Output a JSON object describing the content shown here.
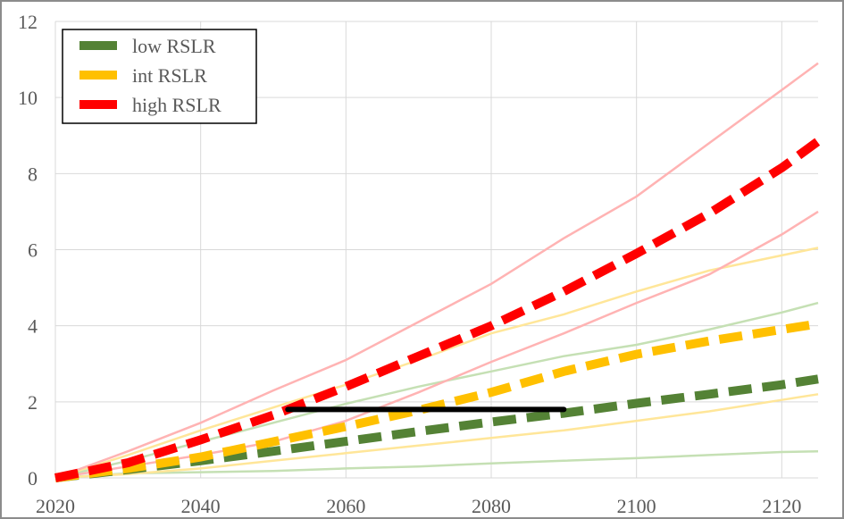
{
  "chart_data": {
    "type": "line",
    "title": "",
    "xlabel": "",
    "ylabel": "",
    "xlim": [
      2020,
      2125
    ],
    "ylim": [
      0,
      12
    ],
    "xticks": [
      2020,
      2040,
      2060,
      2080,
      2100,
      2120
    ],
    "yticks": [
      0,
      2,
      4,
      6,
      8,
      10,
      12
    ],
    "grid": true,
    "legend_position": "top-left",
    "colors": {
      "low": "#548235",
      "int": "#ffc000",
      "high": "#ff0000",
      "low_band": "#c5e0b4",
      "int_band": "#ffe699",
      "high_band": "#ffb3b3"
    },
    "series": [
      {
        "name": "low RSLR",
        "style": "dashed",
        "color": "#548235",
        "x": [
          2020,
          2030,
          2040,
          2050,
          2060,
          2070,
          2080,
          2090,
          2100,
          2110,
          2120,
          2125
        ],
        "values": [
          0,
          0.22,
          0.45,
          0.7,
          0.96,
          1.22,
          1.47,
          1.7,
          1.96,
          2.2,
          2.45,
          2.6
        ]
      },
      {
        "name": "int RSLR",
        "style": "dashed",
        "color": "#ffc000",
        "x": [
          2020,
          2030,
          2040,
          2050,
          2060,
          2070,
          2080,
          2090,
          2100,
          2110,
          2120,
          2125
        ],
        "values": [
          0,
          0.25,
          0.55,
          0.95,
          1.35,
          1.78,
          2.25,
          2.8,
          3.25,
          3.6,
          3.9,
          4.05
        ]
      },
      {
        "name": "high RSLR",
        "style": "dashed",
        "color": "#ff0000",
        "x": [
          2020,
          2030,
          2040,
          2050,
          2060,
          2070,
          2080,
          2090,
          2100,
          2110,
          2120,
          2125
        ],
        "values": [
          0,
          0.4,
          1.0,
          1.65,
          2.4,
          3.2,
          4.0,
          4.9,
          5.9,
          6.95,
          8.15,
          8.85
        ]
      }
    ],
    "bands": [
      {
        "color": "#c5e0b4",
        "x": [
          2020,
          2030,
          2040,
          2050,
          2060,
          2070,
          2080,
          2090,
          2100,
          2110,
          2120,
          2125
        ],
        "values": [
          0,
          0.12,
          0.15,
          0.18,
          0.25,
          0.3,
          0.38,
          0.45,
          0.52,
          0.6,
          0.68,
          0.7
        ]
      },
      {
        "color": "#c5e0b4",
        "x": [
          2020,
          2030,
          2040,
          2050,
          2060,
          2070,
          2080,
          2090,
          2100,
          2110,
          2120,
          2125
        ],
        "values": [
          0,
          0.45,
          0.95,
          1.45,
          1.95,
          2.4,
          2.8,
          3.2,
          3.5,
          3.9,
          4.35,
          4.6
        ]
      },
      {
        "color": "#ffe699",
        "x": [
          2020,
          2030,
          2040,
          2050,
          2060,
          2070,
          2080,
          2090,
          2100,
          2110,
          2120,
          2125
        ],
        "values": [
          0,
          0.1,
          0.25,
          0.45,
          0.65,
          0.85,
          1.05,
          1.25,
          1.5,
          1.75,
          2.05,
          2.2
        ]
      },
      {
        "color": "#ffe699",
        "x": [
          2020,
          2030,
          2040,
          2050,
          2060,
          2070,
          2080,
          2090,
          2100,
          2110,
          2120,
          2125
        ],
        "values": [
          0,
          0.6,
          1.25,
          1.85,
          2.45,
          3.1,
          3.8,
          4.3,
          4.9,
          5.45,
          5.85,
          6.05
        ]
      },
      {
        "color": "#ffb3b3",
        "x": [
          2020,
          2030,
          2040,
          2050,
          2060,
          2070,
          2080,
          2090,
          2100,
          2110,
          2120,
          2125
        ],
        "values": [
          0,
          0.3,
          0.6,
          0.95,
          1.5,
          2.25,
          3.05,
          3.8,
          4.6,
          5.35,
          6.4,
          7.0
        ]
      },
      {
        "color": "#ffb3b3",
        "x": [
          2020,
          2030,
          2040,
          2050,
          2060,
          2070,
          2080,
          2090,
          2100,
          2110,
          2120,
          2125
        ],
        "values": [
          0,
          0.7,
          1.45,
          2.3,
          3.1,
          4.1,
          5.1,
          6.3,
          7.4,
          8.8,
          10.2,
          10.9
        ]
      }
    ],
    "reference_line": {
      "color": "#000000",
      "x": [
        2052,
        2090
      ],
      "values": [
        1.8,
        1.8
      ]
    }
  }
}
